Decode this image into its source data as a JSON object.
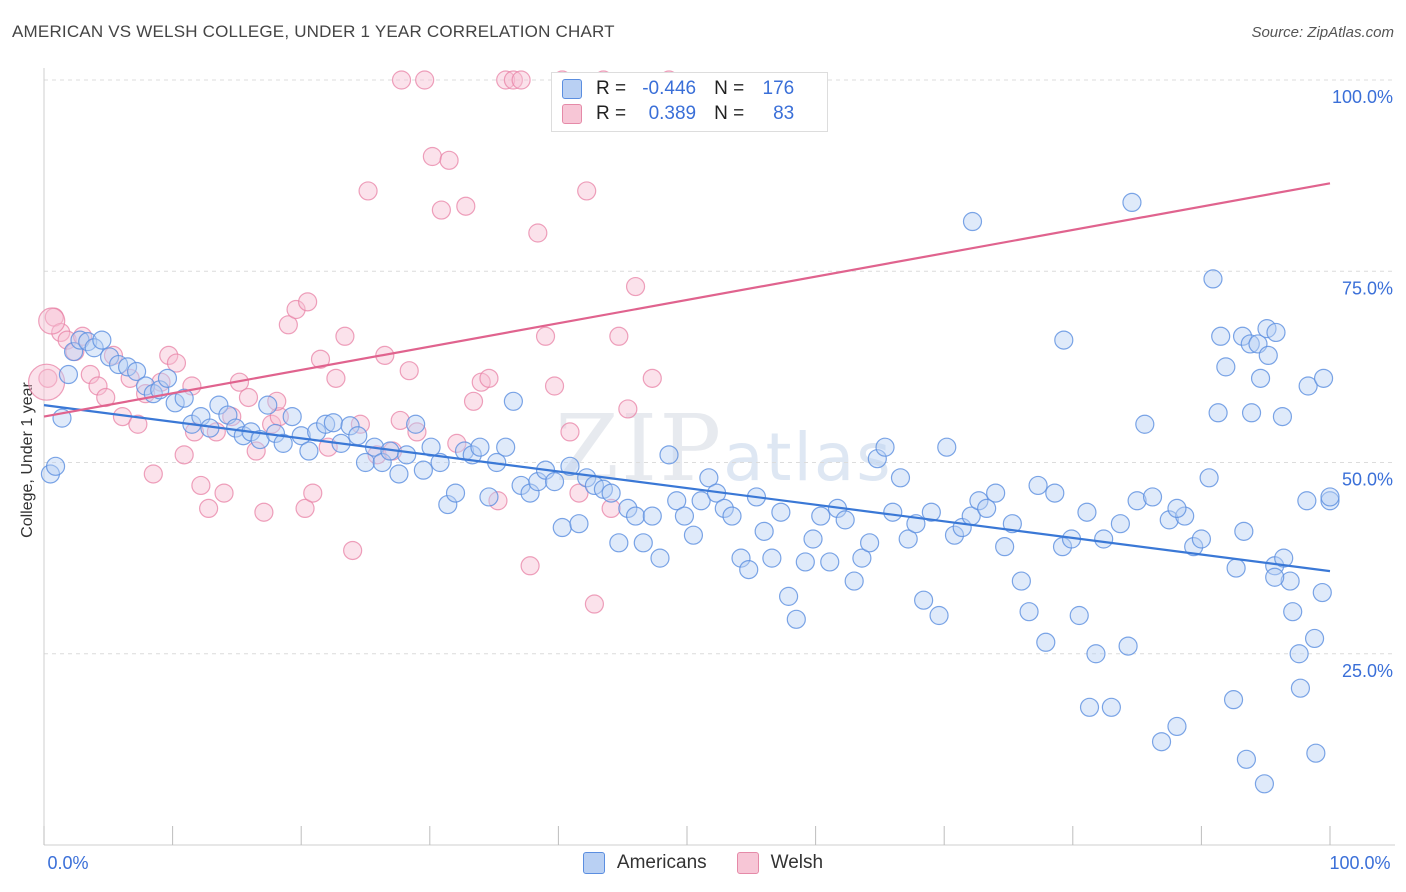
{
  "title": "AMERICAN VS WELSH COLLEGE, UNDER 1 YEAR CORRELATION CHART",
  "source": "Source: ZipAtlas.com",
  "watermark": {
    "zip": "ZIP",
    "atlas": "atlas"
  },
  "legend": {
    "rows": [
      {
        "r_label": "R =",
        "r_value": "-0.446",
        "n_label": "N =",
        "n_value": "176"
      },
      {
        "r_label": "R =",
        "r_value": "0.389",
        "n_label": "N =",
        "n_value": "83"
      }
    ]
  },
  "bottom_legend": [
    "Americans",
    "Welsh"
  ],
  "colors": {
    "americans": "#5b8ee0",
    "welsh": "#f0a4bd",
    "blue_line": "#3a78d6",
    "pink_line": "#e0638e",
    "tick_text": "#3a6fd8"
  },
  "chart_data": {
    "type": "scatter",
    "title": "AMERICAN VS WELSH COLLEGE, UNDER 1 YEAR CORRELATION CHART",
    "xlabel": "",
    "ylabel": "College, Under 1 year",
    "xlim": [
      0,
      100
    ],
    "ylim": [
      0,
      100
    ],
    "x_tick_labels": [
      "0.0%",
      "100.0%"
    ],
    "y_tick_labels": [
      "25.0%",
      "50.0%",
      "75.0%",
      "100.0%"
    ],
    "y_ticks": [
      25,
      50,
      75,
      100
    ],
    "series": [
      {
        "name": "Americans",
        "r": -0.446,
        "n": 176,
        "trend": {
          "x": [
            0,
            100
          ],
          "y": [
            57.5,
            35.8
          ]
        },
        "points": [
          [
            0.5,
            48.5
          ],
          [
            0.9,
            49.5
          ],
          [
            1.4,
            55.8
          ],
          [
            1.9,
            61.5
          ],
          [
            2.3,
            64.5
          ],
          [
            2.8,
            66
          ],
          [
            3.4,
            65.8
          ],
          [
            3.9,
            65
          ],
          [
            4.5,
            66
          ],
          [
            5.1,
            63.8
          ],
          [
            5.8,
            62.8
          ],
          [
            6.5,
            62.5
          ],
          [
            7.2,
            61.9
          ],
          [
            7.9,
            60
          ],
          [
            8.5,
            59
          ],
          [
            9.0,
            59.5
          ],
          [
            9.6,
            61
          ],
          [
            10.2,
            57.8
          ],
          [
            10.9,
            58.4
          ],
          [
            11.5,
            55
          ],
          [
            12.2,
            56
          ],
          [
            12.9,
            54.5
          ],
          [
            13.6,
            57.5
          ],
          [
            14.3,
            56.2
          ],
          [
            14.9,
            54.5
          ],
          [
            15.5,
            53.5
          ],
          [
            16.1,
            54
          ],
          [
            16.8,
            53
          ],
          [
            17.4,
            57.5
          ],
          [
            18.0,
            53.8
          ],
          [
            18.6,
            52.5
          ],
          [
            19.3,
            56
          ],
          [
            20.0,
            53.5
          ],
          [
            20.6,
            51.5
          ],
          [
            21.2,
            54
          ],
          [
            21.9,
            55
          ],
          [
            22.5,
            55.2
          ],
          [
            23.1,
            52.5
          ],
          [
            23.8,
            54.8
          ],
          [
            24.4,
            53.5
          ],
          [
            25.0,
            50
          ],
          [
            25.7,
            52
          ],
          [
            26.3,
            50
          ],
          [
            26.9,
            51.5
          ],
          [
            27.6,
            48.5
          ],
          [
            28.2,
            51
          ],
          [
            28.9,
            55
          ],
          [
            29.5,
            49
          ],
          [
            30.1,
            52
          ],
          [
            30.8,
            50
          ],
          [
            31.4,
            44.5
          ],
          [
            32.0,
            46
          ],
          [
            32.7,
            51.5
          ],
          [
            33.3,
            51
          ],
          [
            33.9,
            52
          ],
          [
            34.6,
            45.5
          ],
          [
            35.2,
            50
          ],
          [
            35.9,
            52
          ],
          [
            36.5,
            58
          ],
          [
            37.1,
            47
          ],
          [
            37.8,
            46
          ],
          [
            38.4,
            47.5
          ],
          [
            39.0,
            49
          ],
          [
            39.7,
            47.5
          ],
          [
            40.3,
            41.5
          ],
          [
            40.9,
            49.5
          ],
          [
            41.6,
            42
          ],
          [
            42.2,
            48
          ],
          [
            42.8,
            47
          ],
          [
            43.5,
            46.5
          ],
          [
            44.1,
            46
          ],
          [
            44.7,
            39.5
          ],
          [
            45.4,
            44
          ],
          [
            46.0,
            43
          ],
          [
            46.6,
            39.5
          ],
          [
            47.3,
            43
          ],
          [
            47.9,
            37.5
          ],
          [
            48.6,
            51
          ],
          [
            49.2,
            45
          ],
          [
            49.8,
            43
          ],
          [
            50.5,
            40.5
          ],
          [
            51.1,
            45
          ],
          [
            51.7,
            48
          ],
          [
            52.3,
            46
          ],
          [
            52.9,
            44
          ],
          [
            53.5,
            43
          ],
          [
            54.2,
            37.5
          ],
          [
            54.8,
            36
          ],
          [
            55.4,
            45.5
          ],
          [
            56.0,
            41
          ],
          [
            56.6,
            37.5
          ],
          [
            57.3,
            43.5
          ],
          [
            57.9,
            32.5
          ],
          [
            58.5,
            29.5
          ],
          [
            59.2,
            37
          ],
          [
            59.8,
            40
          ],
          [
            60.4,
            43
          ],
          [
            61.1,
            37
          ],
          [
            61.7,
            44
          ],
          [
            62.3,
            42.5
          ],
          [
            63.0,
            34.5
          ],
          [
            63.6,
            37.5
          ],
          [
            64.2,
            39.5
          ],
          [
            64.8,
            50.5
          ],
          [
            65.4,
            52
          ],
          [
            66.0,
            43.5
          ],
          [
            66.6,
            48
          ],
          [
            67.2,
            40
          ],
          [
            67.8,
            42
          ],
          [
            68.4,
            32
          ],
          [
            69.0,
            43.5
          ],
          [
            69.6,
            30
          ],
          [
            70.2,
            52
          ],
          [
            70.8,
            40.5
          ],
          [
            71.4,
            41.5
          ],
          [
            72.1,
            43
          ],
          [
            72.7,
            45
          ],
          [
            73.3,
            44
          ],
          [
            74.0,
            46
          ],
          [
            74.7,
            39
          ],
          [
            75.3,
            42
          ],
          [
            76.0,
            34.5
          ],
          [
            76.6,
            30.5
          ],
          [
            77.3,
            47
          ],
          [
            77.9,
            26.5
          ],
          [
            78.6,
            46
          ],
          [
            79.2,
            39
          ],
          [
            79.9,
            40
          ],
          [
            80.5,
            30
          ],
          [
            81.1,
            43.5
          ],
          [
            81.8,
            25
          ],
          [
            82.4,
            40
          ],
          [
            83.0,
            18
          ],
          [
            83.7,
            42
          ],
          [
            84.3,
            26
          ],
          [
            85.0,
            45
          ],
          [
            85.6,
            55
          ],
          [
            86.2,
            45.5
          ],
          [
            86.9,
            13.5
          ],
          [
            87.5,
            42.5
          ],
          [
            88.1,
            15.5
          ],
          [
            88.7,
            43
          ],
          [
            89.4,
            39
          ],
          [
            90.0,
            40
          ],
          [
            90.6,
            48
          ],
          [
            91.3,
            56.5
          ],
          [
            91.9,
            62.5
          ],
          [
            92.5,
            19
          ],
          [
            93.2,
            66.5
          ],
          [
            93.8,
            65.5
          ],
          [
            94.4,
            65.5
          ],
          [
            95.1,
            67.5
          ],
          [
            95.7,
            36.5
          ],
          [
            96.3,
            56
          ],
          [
            96.9,
            34.5
          ],
          [
            97.6,
            25
          ],
          [
            98.2,
            45
          ],
          [
            98.8,
            27
          ],
          [
            99.4,
            33
          ],
          [
            100.0,
            45
          ],
          [
            81.3,
            18
          ],
          [
            79.3,
            66
          ],
          [
            72.2,
            81.5
          ],
          [
            84.6,
            84
          ],
          [
            88.1,
            44
          ],
          [
            90.9,
            74
          ],
          [
            91.5,
            66.5
          ],
          [
            92.7,
            36.2
          ],
          [
            93.3,
            41
          ],
          [
            93.9,
            56.5
          ],
          [
            94.6,
            61
          ],
          [
            95.2,
            64
          ],
          [
            95.8,
            67
          ],
          [
            96.4,
            37.5
          ],
          [
            97.1,
            30.5
          ],
          [
            97.7,
            20.5
          ],
          [
            98.3,
            60
          ],
          [
            98.9,
            12
          ],
          [
            99.5,
            61
          ],
          [
            100.0,
            45.5
          ],
          [
            93.5,
            11.2
          ],
          [
            95.7,
            35
          ],
          [
            94.9,
            8
          ]
        ]
      },
      {
        "name": "Welsh",
        "r": 0.389,
        "n": 83,
        "trend": {
          "x": [
            0,
            100
          ],
          "y": [
            56,
            86.5
          ]
        },
        "points": [
          [
            0.3,
            61
          ],
          [
            0.8,
            69
          ],
          [
            1.3,
            67
          ],
          [
            1.8,
            66
          ],
          [
            2.4,
            64.5
          ],
          [
            3.0,
            66.5
          ],
          [
            3.6,
            61.5
          ],
          [
            4.2,
            60
          ],
          [
            4.8,
            58.5
          ],
          [
            5.4,
            64
          ],
          [
            6.1,
            56
          ],
          [
            6.7,
            61
          ],
          [
            7.3,
            55
          ],
          [
            7.9,
            59
          ],
          [
            8.5,
            48.5
          ],
          [
            9.1,
            60.5
          ],
          [
            9.7,
            64
          ],
          [
            10.3,
            63
          ],
          [
            10.9,
            51
          ],
          [
            11.5,
            60
          ],
          [
            12.2,
            47
          ],
          [
            12.8,
            44
          ],
          [
            13.4,
            54
          ],
          [
            14.0,
            46
          ],
          [
            14.6,
            56
          ],
          [
            15.2,
            60.5
          ],
          [
            15.9,
            58.5
          ],
          [
            16.5,
            51.5
          ],
          [
            17.1,
            43.5
          ],
          [
            17.7,
            55
          ],
          [
            18.3,
            56
          ],
          [
            19.0,
            68
          ],
          [
            19.6,
            70
          ],
          [
            20.3,
            44
          ],
          [
            20.9,
            46
          ],
          [
            21.5,
            63.5
          ],
          [
            22.1,
            52
          ],
          [
            22.7,
            61
          ],
          [
            23.4,
            66.5
          ],
          [
            24.0,
            38.5
          ],
          [
            24.6,
            55
          ],
          [
            25.2,
            85.5
          ],
          [
            25.9,
            51
          ],
          [
            26.5,
            64
          ],
          [
            27.1,
            51.5
          ],
          [
            27.7,
            55.5
          ],
          [
            28.4,
            62
          ],
          [
            29.0,
            54
          ],
          [
            29.6,
            100
          ],
          [
            30.2,
            90
          ],
          [
            30.9,
            83
          ],
          [
            31.5,
            89.5
          ],
          [
            32.1,
            52.5
          ],
          [
            32.8,
            83.5
          ],
          [
            33.4,
            58
          ],
          [
            34.0,
            60.5
          ],
          [
            34.6,
            61
          ],
          [
            35.3,
            45
          ],
          [
            35.9,
            100
          ],
          [
            36.5,
            100
          ],
          [
            37.1,
            100
          ],
          [
            37.8,
            36.5
          ],
          [
            38.4,
            80
          ],
          [
            39.0,
            66.5
          ],
          [
            39.7,
            60
          ],
          [
            40.3,
            100
          ],
          [
            40.9,
            54
          ],
          [
            41.6,
            46
          ],
          [
            42.2,
            85.5
          ],
          [
            42.8,
            31.5
          ],
          [
            43.5,
            100
          ],
          [
            44.1,
            44
          ],
          [
            44.7,
            66.5
          ],
          [
            45.4,
            57
          ],
          [
            46.0,
            73
          ],
          [
            46.6,
            95.5
          ],
          [
            47.3,
            61
          ],
          [
            47.9,
            98
          ],
          [
            48.6,
            100
          ],
          [
            27.8,
            100
          ],
          [
            20.5,
            71
          ],
          [
            18.1,
            58
          ],
          [
            11.7,
            54
          ]
        ]
      }
    ]
  }
}
